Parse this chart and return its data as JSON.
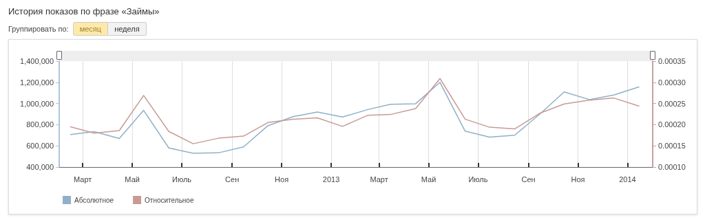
{
  "chart_data": {
    "type": "line",
    "title": "История показов по фразе «Займы»",
    "annotations": [
      "Группировать по:",
      "месяц",
      "неделя"
    ],
    "x": [
      "2012-02-15",
      "2012-03-15",
      "2012-04-15",
      "2012-05-15",
      "2012-06-15",
      "2012-07-15",
      "2012-08-15",
      "2012-09-15",
      "2012-10-15",
      "2012-11-15",
      "2012-12-15",
      "2013-01-15",
      "2013-02-15",
      "2013-03-15",
      "2013-04-15",
      "2013-05-15",
      "2013-06-15",
      "2013-07-15",
      "2013-08-15",
      "2013-09-15",
      "2013-10-15",
      "2013-11-15",
      "2013-12-15",
      "2014-01-15"
    ],
    "series": [
      {
        "name": "Абсолютное",
        "color": "#8fb0c8",
        "values": [
          707000,
          735000,
          670000,
          935000,
          580000,
          530000,
          534000,
          590000,
          790000,
          876000,
          920000,
          872000,
          943000,
          993000,
          998000,
          1200000,
          739000,
          683000,
          700000,
          900000,
          1109000,
          1037000,
          1080000,
          1157000
        ]
      },
      {
        "name": "Относительное",
        "color": "#c89a94",
        "axis": "y2",
        "values": [
          0.000195,
          0.00018,
          0.000186,
          0.000269,
          0.000184,
          0.000155,
          0.000168,
          0.000173,
          0.000205,
          0.000213,
          0.000216,
          0.000196,
          0.000222,
          0.000224,
          0.000238,
          0.000309,
          0.000213,
          0.000194,
          0.00019,
          0.000227,
          0.000249,
          0.000258,
          0.000263,
          0.000244
        ]
      }
    ],
    "xlim": [
      "2012-02-01",
      "2014-02-01"
    ],
    "xticks": [
      {
        "value": "2012-03-01",
        "label": "Март"
      },
      {
        "value": "2012-05-01",
        "label": "Май"
      },
      {
        "value": "2012-07-01",
        "label": "Июль"
      },
      {
        "value": "2012-09-01",
        "label": "Сен"
      },
      {
        "value": "2012-11-01",
        "label": "Ноя"
      },
      {
        "value": "2013-01-01",
        "label": "2013"
      },
      {
        "value": "2013-03-01",
        "label": "Март"
      },
      {
        "value": "2013-05-01",
        "label": "Май"
      },
      {
        "value": "2013-07-01",
        "label": "Июль"
      },
      {
        "value": "2013-09-01",
        "label": "Сен"
      },
      {
        "value": "2013-11-01",
        "label": "Ноя"
      },
      {
        "value": "2014-01-01",
        "label": "2014"
      }
    ],
    "ylim": [
      400000,
      1400000
    ],
    "yticks": [
      {
        "value": 400000,
        "label": "400,000"
      },
      {
        "value": 600000,
        "label": "600,000"
      },
      {
        "value": 800000,
        "label": "800,000"
      },
      {
        "value": 1000000,
        "label": "1,000,000"
      },
      {
        "value": 1200000,
        "label": "1,200,000"
      },
      {
        "value": 1400000,
        "label": "1,400,000"
      }
    ],
    "y2lim": [
      0.0001,
      0.00035
    ],
    "y2ticks": [
      {
        "value": 0.0001,
        "label": "0.00010"
      },
      {
        "value": 0.00015,
        "label": "0.00015"
      },
      {
        "value": 0.0002,
        "label": "0.00020"
      },
      {
        "value": 0.00025,
        "label": "0.00025"
      },
      {
        "value": 0.0003,
        "label": "0.00030"
      },
      {
        "value": 0.00035,
        "label": "0.00035"
      }
    ],
    "grid": "x",
    "legend": "bottom left",
    "marker": "none",
    "line_style": "solid"
  }
}
